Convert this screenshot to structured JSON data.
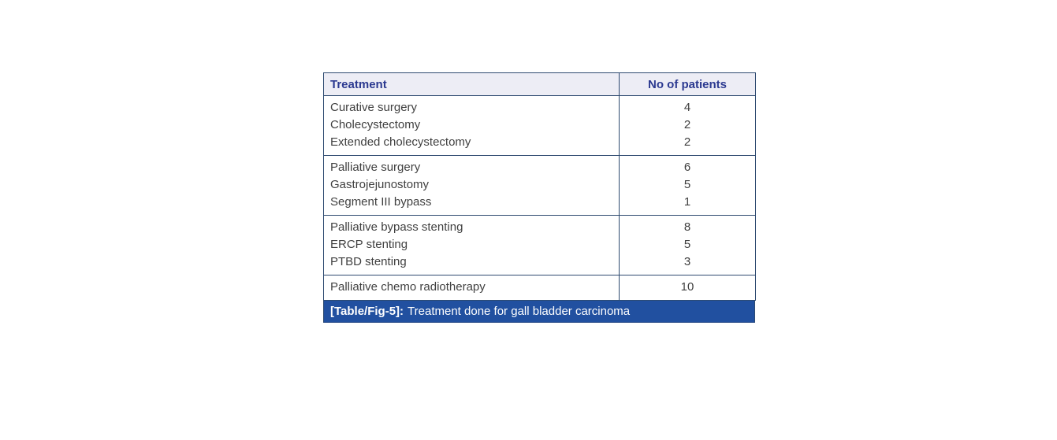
{
  "table": {
    "header": {
      "col1": "Treatment",
      "col2": "No of patients"
    },
    "groups": [
      {
        "rows": [
          {
            "treatment": "Curative surgery",
            "patients": "4"
          },
          {
            "treatment": "Cholecystectomy",
            "patients": "2"
          },
          {
            "treatment": "Extended cholecystectomy",
            "patients": "2"
          }
        ]
      },
      {
        "rows": [
          {
            "treatment": "Palliative surgery",
            "patients": "6"
          },
          {
            "treatment": "Gastrojejunostomy",
            "patients": "5"
          },
          {
            "treatment": "Segment III bypass",
            "patients": "1"
          }
        ]
      },
      {
        "rows": [
          {
            "treatment": "Palliative bypass stenting",
            "patients": "8"
          },
          {
            "treatment": "ERCP stenting",
            "patients": "5"
          },
          {
            "treatment": "PTBD stenting",
            "patients": "3"
          }
        ]
      },
      {
        "rows": [
          {
            "treatment": "Palliative chemo radiotherapy",
            "patients": "10"
          }
        ]
      }
    ],
    "caption": {
      "label": "[Table/Fig-5]:",
      "text": "Treatment done for gall bladder carcinoma"
    }
  },
  "colors": {
    "table_border": "#2e4a70",
    "header_background": "#ededf5",
    "header_text": "#2b3990",
    "body_text": "#404040",
    "caption_background": "#2150a0",
    "caption_text": "#ffffff",
    "page_background": "#ffffff"
  }
}
